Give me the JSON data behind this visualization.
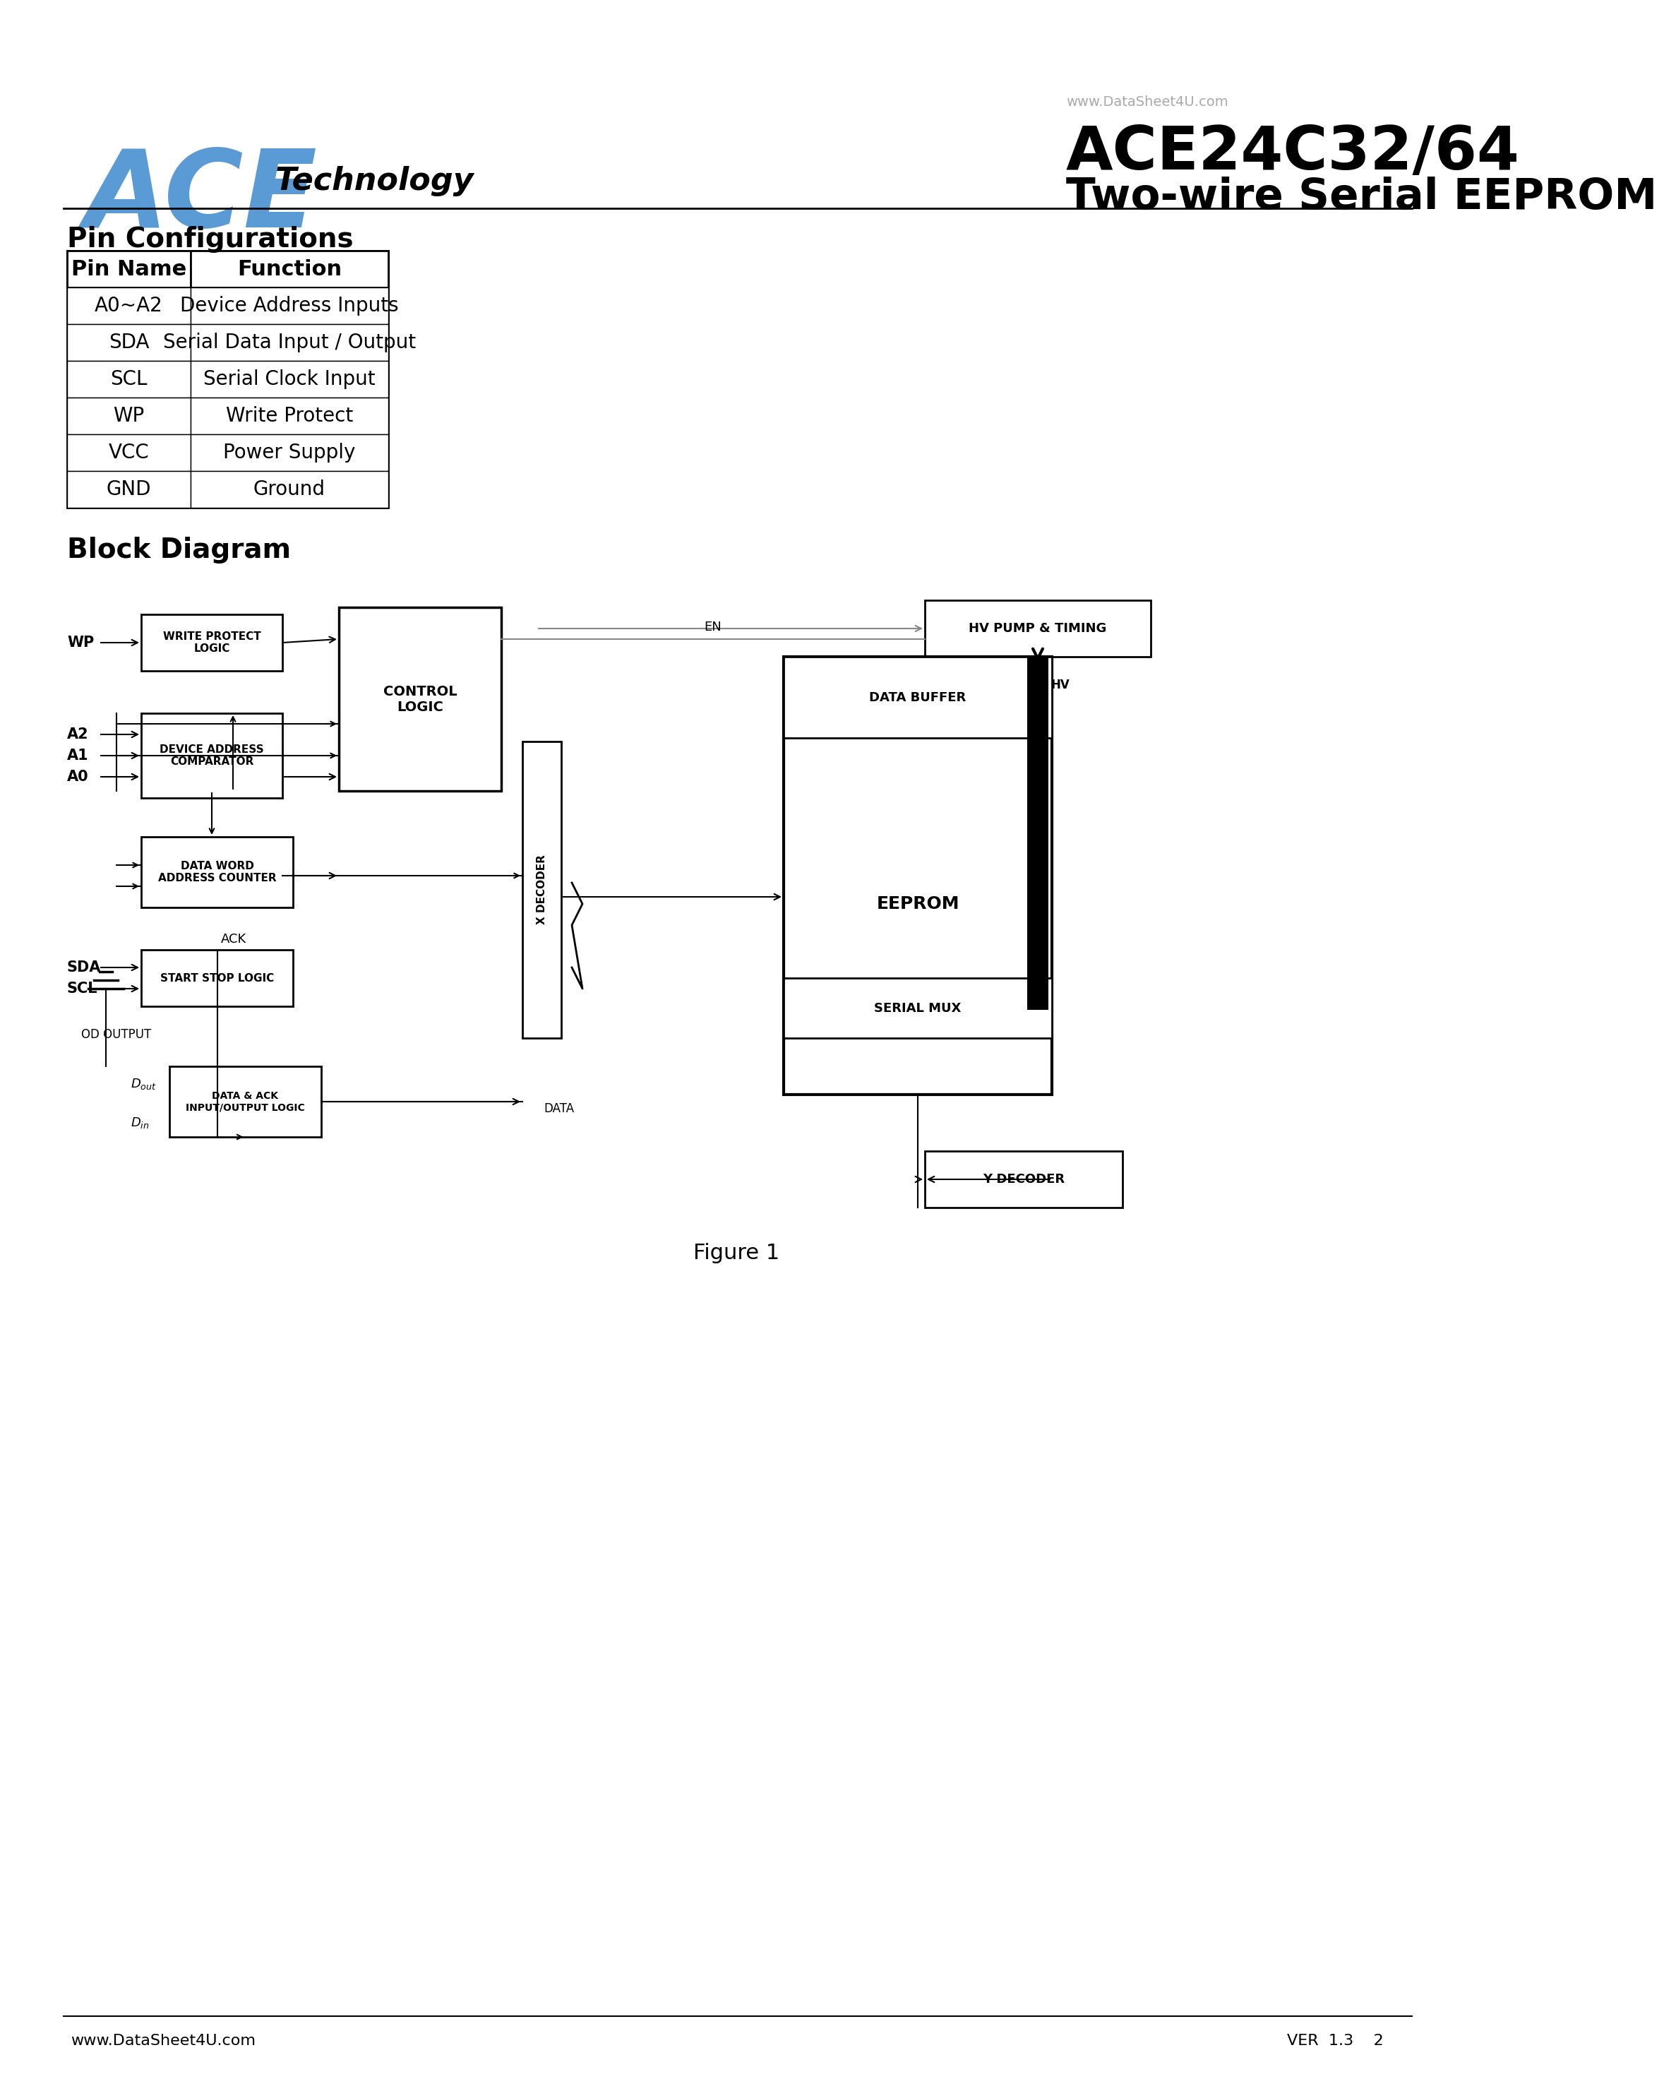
{
  "bg_color": "#ffffff",
  "ace_color": "#5b9bd5",
  "title_line1": "ACE24C32/64",
  "title_line2": "Two-wire Serial EEPROM",
  "watermark": "www.DataSheet4U.com",
  "technology_text": "Technology",
  "pin_config_title": "Pin Configurations",
  "table_headers": [
    "Pin Name",
    "Function"
  ],
  "table_rows": [
    [
      "A0~A2",
      "Device Address Inputs"
    ],
    [
      "SDA",
      "Serial Data Input / Output"
    ],
    [
      "SCL",
      "Serial Clock Input"
    ],
    [
      "WP",
      "Write Protect"
    ],
    [
      "VCC",
      "Power Supply"
    ],
    [
      "GND",
      "Ground"
    ]
  ],
  "block_diagram_title": "Block Diagram",
  "figure_caption": "Figure 1",
  "footer_left": "www.DataSheet4U.com",
  "footer_right": "VER  1.3    2"
}
